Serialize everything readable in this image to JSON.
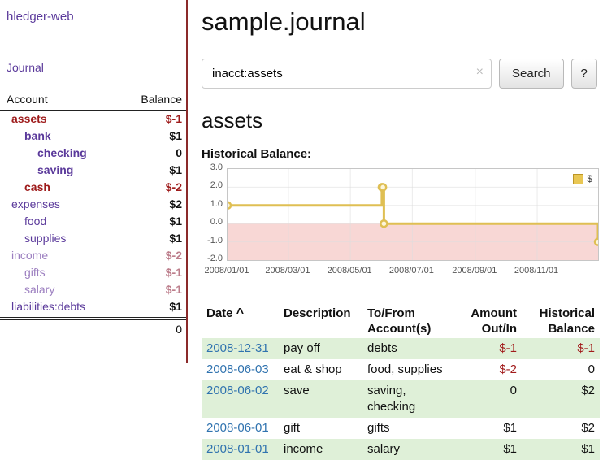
{
  "colors": {
    "accent_purple": "#5b3a9b",
    "faded_purple": "#9c7fc0",
    "negative_red": "#9e1b1b",
    "negative_soft": "#bc7d8b",
    "link_blue": "#3073af",
    "row_green": "#dff0d8",
    "chart_gold": "#dfbf53",
    "chart_negative_fill": "#f8d7d5",
    "sidebar_divider": "#8b2a2a"
  },
  "sidebar": {
    "brand": "hledger-web",
    "nav": {
      "journal": "Journal"
    },
    "table": {
      "headers": {
        "account": "Account",
        "balance": "Balance"
      },
      "rows": [
        {
          "account": "assets",
          "balance": "$-1"
        },
        {
          "account": "bank",
          "balance": "$1"
        },
        {
          "account": "checking",
          "balance": "0"
        },
        {
          "account": "saving",
          "balance": "$1"
        },
        {
          "account": "cash",
          "balance": "$-2"
        },
        {
          "account": "expenses",
          "balance": "$2"
        },
        {
          "account": "food",
          "balance": "$1"
        },
        {
          "account": "supplies",
          "balance": "$1"
        },
        {
          "account": "income",
          "balance": "$-2"
        },
        {
          "account": "gifts",
          "balance": "$-1"
        },
        {
          "account": "salary",
          "balance": "$-1"
        },
        {
          "account": "liabilities:debts",
          "balance": "$1"
        }
      ],
      "total": "0"
    }
  },
  "main": {
    "title": "sample.journal",
    "search": {
      "value": "inacct:assets",
      "clear": "×",
      "search_button": "Search",
      "help_button": "?"
    },
    "account_heading": "assets",
    "chart_title": "Historical Balance:"
  },
  "chart_data": {
    "type": "line",
    "step": true,
    "title": "Historical Balance",
    "legend": [
      {
        "label": "$",
        "color": "#dfbf53"
      }
    ],
    "ylim": [
      -2,
      3
    ],
    "y_ticks": [
      "3.0",
      "2.0",
      "1.0",
      "0.0",
      "-1.0",
      "-2.0"
    ],
    "x_ticks": [
      "2008/01/01",
      "2008/03/01",
      "2008/05/01",
      "2008/07/01",
      "2008/09/01",
      "2008/11/01"
    ],
    "x_range": [
      "2008-01-01",
      "2008-12-31"
    ],
    "grid": true,
    "legend_position": "top-right",
    "negative_region_shaded": true,
    "series": [
      {
        "name": "$",
        "points": [
          [
            "2008-01-01",
            1
          ],
          [
            "2008-06-01",
            2
          ],
          [
            "2008-06-02",
            2
          ],
          [
            "2008-06-03",
            0
          ],
          [
            "2008-12-31",
            -1
          ]
        ]
      }
    ]
  },
  "register": {
    "headers": {
      "date": "Date",
      "sort_indicator": "^",
      "description": "Description",
      "account": "To/From Account(s)",
      "amount": "Amount Out/In",
      "balance": "Historical Balance"
    },
    "rows": [
      {
        "date": "2008-12-31",
        "description": "pay off",
        "accounts": "debts",
        "amount": "$-1",
        "balance": "$-1"
      },
      {
        "date": "2008-06-03",
        "description": "eat & shop",
        "accounts": "food, supplies",
        "amount": "$-2",
        "balance": "0"
      },
      {
        "date": "2008-06-02",
        "description": "save",
        "accounts": "saving, checking",
        "amount": "0",
        "balance": "$2"
      },
      {
        "date": "2008-06-01",
        "description": "gift",
        "accounts": "gifts",
        "amount": "$1",
        "balance": "$2"
      },
      {
        "date": "2008-01-01",
        "description": "income",
        "accounts": "salary",
        "amount": "$1",
        "balance": "$1"
      }
    ]
  }
}
